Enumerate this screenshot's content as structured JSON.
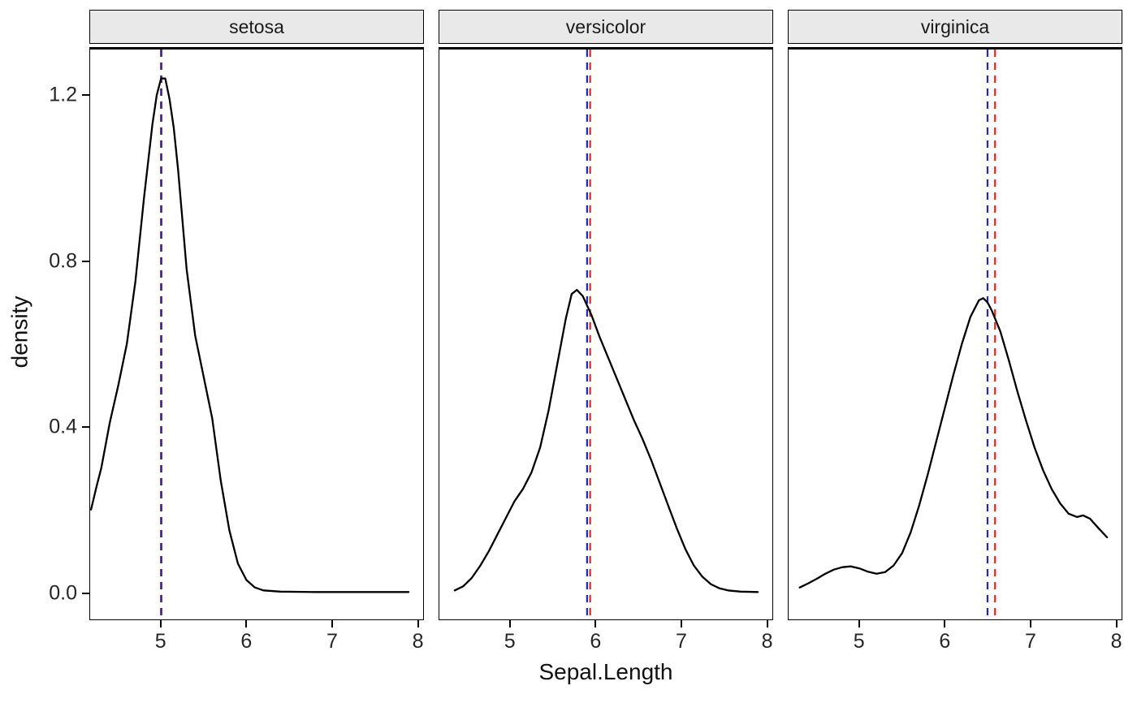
{
  "chart_data": {
    "type": "line",
    "subtype": "faceted-density",
    "title": "",
    "xlabel": "Sepal.Length",
    "ylabel": "density",
    "x_domain": [
      4.17,
      8.07
    ],
    "y_domain": [
      -0.065,
      1.31
    ],
    "grid": false,
    "legend": "none",
    "x_ticks": [
      {
        "value": 5,
        "label": "5"
      },
      {
        "value": 6,
        "label": "6"
      },
      {
        "value": 7,
        "label": "7"
      },
      {
        "value": 8,
        "label": "8"
      }
    ],
    "y_ticks": [
      {
        "value": 0.0,
        "label": "0.0"
      },
      {
        "value": 0.4,
        "label": "0.4"
      },
      {
        "value": 0.8,
        "label": "0.8"
      },
      {
        "value": 1.2,
        "label": "1.2"
      }
    ],
    "style": {
      "curve_color": "#000000",
      "strip_fill": "#e9e9e9",
      "panel_border": "#000000",
      "vline_red": "#ee2222",
      "vline_blue": "#2222dd",
      "dash": "9 7"
    },
    "facets": [
      {
        "label": "setosa",
        "vlines": [
          {
            "x": 5.006,
            "color": "#ee2222",
            "name": "red-dashed-vline"
          },
          {
            "x": 5.0,
            "color": "#2222dd",
            "name": "blue-dashed-vline"
          }
        ],
        "curve": [
          [
            4.18,
            0.2
          ],
          [
            4.25,
            0.26
          ],
          [
            4.3,
            0.3
          ],
          [
            4.4,
            0.41
          ],
          [
            4.5,
            0.5
          ],
          [
            4.6,
            0.6
          ],
          [
            4.7,
            0.75
          ],
          [
            4.8,
            0.95
          ],
          [
            4.9,
            1.13
          ],
          [
            4.95,
            1.2
          ],
          [
            5.0,
            1.24
          ],
          [
            5.05,
            1.24
          ],
          [
            5.1,
            1.19
          ],
          [
            5.15,
            1.12
          ],
          [
            5.2,
            1.02
          ],
          [
            5.3,
            0.78
          ],
          [
            5.4,
            0.62
          ],
          [
            5.5,
            0.52
          ],
          [
            5.6,
            0.42
          ],
          [
            5.7,
            0.27
          ],
          [
            5.8,
            0.15
          ],
          [
            5.9,
            0.07
          ],
          [
            6.0,
            0.03
          ],
          [
            6.1,
            0.012
          ],
          [
            6.2,
            0.005
          ],
          [
            6.4,
            0.002
          ],
          [
            6.8,
            0.001
          ],
          [
            7.3,
            0.001
          ],
          [
            7.9,
            0.001
          ]
        ]
      },
      {
        "label": "versicolor",
        "vlines": [
          {
            "x": 5.936,
            "color": "#ee2222",
            "name": "red-dashed-vline"
          },
          {
            "x": 5.9,
            "color": "#2222dd",
            "name": "blue-dashed-vline"
          }
        ],
        "curve": [
          [
            4.35,
            0.005
          ],
          [
            4.45,
            0.015
          ],
          [
            4.55,
            0.035
          ],
          [
            4.65,
            0.065
          ],
          [
            4.75,
            0.1
          ],
          [
            4.85,
            0.14
          ],
          [
            4.95,
            0.18
          ],
          [
            5.05,
            0.22
          ],
          [
            5.15,
            0.25
          ],
          [
            5.25,
            0.29
          ],
          [
            5.35,
            0.35
          ],
          [
            5.45,
            0.44
          ],
          [
            5.55,
            0.55
          ],
          [
            5.65,
            0.66
          ],
          [
            5.72,
            0.72
          ],
          [
            5.78,
            0.73
          ],
          [
            5.85,
            0.715
          ],
          [
            5.95,
            0.67
          ],
          [
            6.05,
            0.615
          ],
          [
            6.15,
            0.565
          ],
          [
            6.25,
            0.515
          ],
          [
            6.35,
            0.465
          ],
          [
            6.45,
            0.415
          ],
          [
            6.55,
            0.37
          ],
          [
            6.65,
            0.32
          ],
          [
            6.75,
            0.265
          ],
          [
            6.85,
            0.21
          ],
          [
            6.95,
            0.155
          ],
          [
            7.05,
            0.105
          ],
          [
            7.15,
            0.065
          ],
          [
            7.25,
            0.038
          ],
          [
            7.35,
            0.02
          ],
          [
            7.45,
            0.01
          ],
          [
            7.55,
            0.005
          ],
          [
            7.7,
            0.002
          ],
          [
            7.9,
            0.001
          ]
        ]
      },
      {
        "label": "virginica",
        "vlines": [
          {
            "x": 6.588,
            "color": "#ee2222",
            "name": "red-dashed-vline"
          },
          {
            "x": 6.5,
            "color": "#2222dd",
            "name": "blue-dashed-vline"
          }
        ],
        "curve": [
          [
            4.3,
            0.012
          ],
          [
            4.4,
            0.022
          ],
          [
            4.5,
            0.033
          ],
          [
            4.6,
            0.045
          ],
          [
            4.7,
            0.055
          ],
          [
            4.8,
            0.061
          ],
          [
            4.9,
            0.063
          ],
          [
            5.0,
            0.058
          ],
          [
            5.1,
            0.05
          ],
          [
            5.2,
            0.045
          ],
          [
            5.3,
            0.049
          ],
          [
            5.4,
            0.065
          ],
          [
            5.5,
            0.095
          ],
          [
            5.6,
            0.145
          ],
          [
            5.7,
            0.21
          ],
          [
            5.8,
            0.285
          ],
          [
            5.9,
            0.365
          ],
          [
            6.0,
            0.445
          ],
          [
            6.1,
            0.525
          ],
          [
            6.2,
            0.6
          ],
          [
            6.3,
            0.665
          ],
          [
            6.4,
            0.705
          ],
          [
            6.45,
            0.71
          ],
          [
            6.5,
            0.7
          ],
          [
            6.55,
            0.68
          ],
          [
            6.65,
            0.63
          ],
          [
            6.75,
            0.56
          ],
          [
            6.85,
            0.485
          ],
          [
            6.95,
            0.415
          ],
          [
            7.05,
            0.35
          ],
          [
            7.15,
            0.295
          ],
          [
            7.25,
            0.25
          ],
          [
            7.35,
            0.215
          ],
          [
            7.45,
            0.19
          ],
          [
            7.55,
            0.182
          ],
          [
            7.62,
            0.186
          ],
          [
            7.7,
            0.178
          ],
          [
            7.8,
            0.155
          ],
          [
            7.9,
            0.133
          ]
        ]
      }
    ]
  }
}
